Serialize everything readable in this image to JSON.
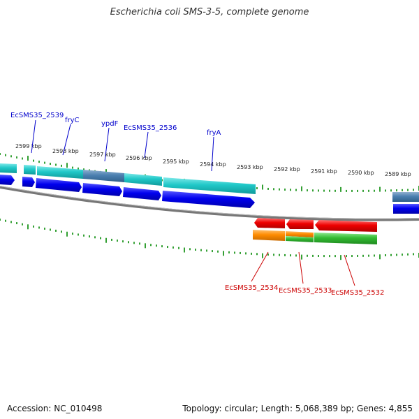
{
  "title": "Escherichia coli SMS-3-5, complete genome",
  "footer": {
    "accession": "Accession: NC_010498",
    "summary": "Topology: circular; Length: 5,068,389 bp; Genes: 4,855"
  },
  "ruler_labels": [
    "2599 kbp",
    "2598 kbp",
    "2597 kbp",
    "2596 kbp",
    "2595 kbp",
    "2594 kbp",
    "2593 kbp",
    "2592 kbp",
    "2591 kbp",
    "2590 kbp",
    "2589 kbp"
  ],
  "forward_gene_labels": [
    "EcSMS35_2539",
    "fryC",
    "ypdF",
    "EcSMS35_2536",
    "fryA"
  ],
  "reverse_gene_labels": [
    "EcSMS35_2534",
    "EcSMS35_2533",
    "EcSMS35_2532"
  ],
  "colors": {
    "forward_label": "#0000cc",
    "reverse_label": "#cc0000",
    "cds_forward": "#0000ee",
    "cds_reverse": "#ee0000",
    "gene_cyan": "#20c8c8",
    "gene_steel": "#4a7fb0",
    "gene_orange": "#ff8c00",
    "gene_green": "#33bb33",
    "tick": "#008800",
    "backbone": "#777777"
  }
}
